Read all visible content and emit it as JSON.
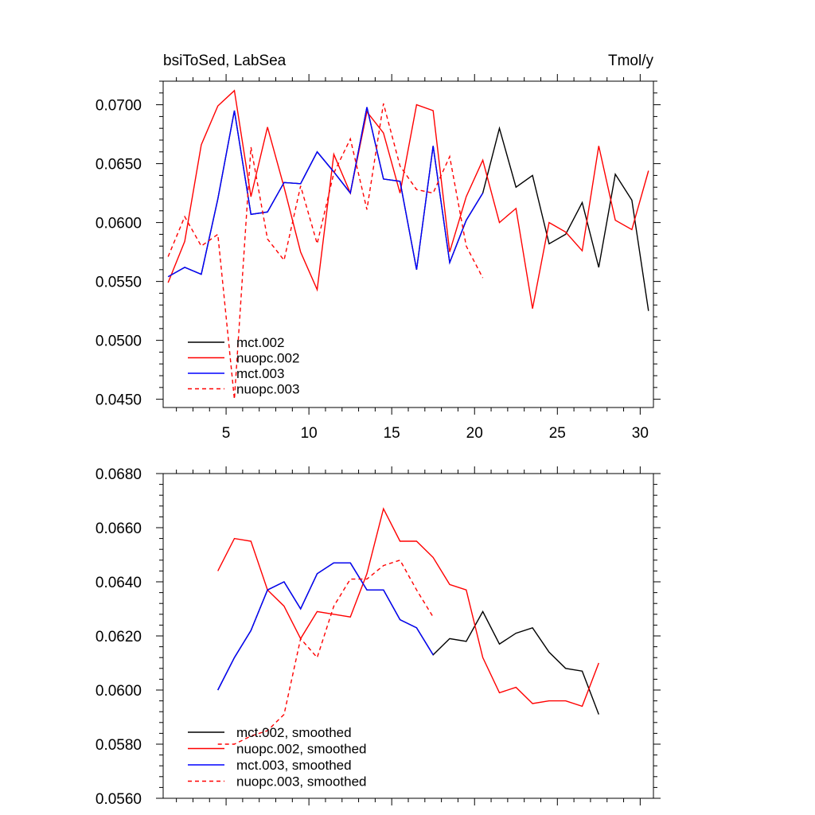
{
  "chart_data": [
    {
      "type": "line",
      "title": "bsiToSed, LabSea",
      "units": "Tmol/y",
      "xlim": [
        1.2,
        30.8
      ],
      "ylim": [
        0.0443,
        0.072
      ],
      "xticks": [
        5,
        10,
        15,
        20,
        25,
        30
      ],
      "xtick_labels": [
        "5",
        "10",
        "15",
        "20",
        "25",
        "30"
      ],
      "yticks": [
        0.045,
        0.05,
        0.055,
        0.06,
        0.065,
        0.07
      ],
      "ytick_labels": [
        "0.0450",
        "0.0500",
        "0.0550",
        "0.0600",
        "0.0650",
        "0.0700"
      ],
      "legend_position": "bottom-left",
      "series": [
        {
          "name": "mct.002",
          "color": "#000000",
          "dash": "solid",
          "x": [
            1.5,
            2.5,
            3.5,
            4.5,
            5.5,
            6.5,
            7.5,
            8.5,
            9.5,
            10.5,
            11.5,
            12.5,
            13.5,
            14.5,
            15.5,
            16.5,
            17.5,
            18.5,
            19.5,
            20.5,
            21.5,
            22.5,
            23.5,
            24.5,
            25.5,
            26.5,
            27.5,
            28.5,
            29.5,
            30.5
          ],
          "y": [
            0.0554,
            0.0562,
            0.0556,
            0.062,
            0.0695,
            0.0607,
            0.0609,
            0.0634,
            0.0633,
            0.066,
            0.0643,
            0.0625,
            0.0698,
            0.0637,
            0.0635,
            0.056,
            0.0665,
            0.0566,
            0.0602,
            0.0625,
            0.068,
            0.063,
            0.064,
            0.0582,
            0.059,
            0.0617,
            0.0562,
            0.0641,
            0.0619,
            0.0525
          ]
        },
        {
          "name": "nuopc.002",
          "color": "#ff0000",
          "dash": "solid",
          "x": [
            1.5,
            2.5,
            3.5,
            4.5,
            5.5,
            6.5,
            7.5,
            8.5,
            9.5,
            10.5,
            11.5,
            12.5,
            13.5,
            14.5,
            15.5,
            16.5,
            17.5,
            18.5,
            19.5,
            20.5,
            21.5,
            22.5,
            23.5,
            24.5,
            25.5,
            26.5,
            27.5,
            28.5,
            29.5,
            30.5
          ],
          "y": [
            0.0549,
            0.0584,
            0.0666,
            0.0699,
            0.0712,
            0.0622,
            0.0681,
            0.063,
            0.0575,
            0.0543,
            0.0658,
            0.0625,
            0.0694,
            0.0676,
            0.0625,
            0.07,
            0.0695,
            0.0575,
            0.0622,
            0.0653,
            0.06,
            0.0612,
            0.0527,
            0.06,
            0.0592,
            0.0576,
            0.0665,
            0.0602,
            0.0594,
            0.0644
          ]
        },
        {
          "name": "mct.003",
          "color": "#0000ff",
          "dash": "solid",
          "x": [
            1.5,
            2.5,
            3.5,
            4.5,
            5.5,
            6.5,
            7.5,
            8.5,
            9.5,
            10.5,
            11.5,
            12.5,
            13.5,
            14.5,
            15.5,
            16.5,
            17.5,
            18.5,
            19.5,
            20.5
          ],
          "y": [
            0.0554,
            0.0562,
            0.0556,
            0.062,
            0.0695,
            0.0607,
            0.0609,
            0.0634,
            0.0633,
            0.066,
            0.0643,
            0.0625,
            0.0698,
            0.0637,
            0.0635,
            0.056,
            0.0665,
            0.0566,
            0.0602,
            0.0625
          ]
        },
        {
          "name": "nuopc.003",
          "color": "#ff0000",
          "dash": "dashed",
          "x": [
            1.5,
            2.5,
            3.5,
            4.5,
            5.5,
            6.5,
            7.5,
            8.5,
            9.5,
            10.5,
            11.5,
            12.5,
            13.5,
            14.5,
            15.5,
            16.5,
            17.5,
            18.5,
            19.5,
            20.5
          ],
          "y": [
            0.0571,
            0.0605,
            0.058,
            0.059,
            0.045,
            0.0664,
            0.0586,
            0.0568,
            0.0631,
            0.0582,
            0.0642,
            0.0671,
            0.0611,
            0.0701,
            0.0648,
            0.0628,
            0.0625,
            0.0656,
            0.058,
            0.0553
          ]
        }
      ]
    },
    {
      "type": "line",
      "title": "",
      "xlim": [
        1.2,
        30.8
      ],
      "ylim": [
        0.056,
        0.068
      ],
      "xticks": [
        5,
        10,
        15,
        20,
        25,
        30
      ],
      "xtick_labels": [
        "",
        "",
        "",
        "",
        "",
        ""
      ],
      "yticks": [
        0.056,
        0.058,
        0.06,
        0.062,
        0.064,
        0.066,
        0.068
      ],
      "ytick_labels": [
        "0.0560",
        "0.0580",
        "0.0600",
        "0.0620",
        "0.0640",
        "0.0660",
        "0.0680"
      ],
      "legend_position": "bottom-left",
      "series": [
        {
          "name": "mct.002, smoothed",
          "color": "#000000",
          "dash": "solid",
          "x": [
            4.5,
            5.5,
            6.5,
            7.5,
            8.5,
            9.5,
            10.5,
            11.5,
            12.5,
            13.5,
            14.5,
            15.5,
            16.5,
            17.5,
            18.5,
            19.5,
            20.5,
            21.5,
            22.5,
            23.5,
            24.5,
            25.5,
            26.5,
            27.5
          ],
          "y": [
            0.06,
            0.0612,
            0.0622,
            0.0637,
            0.064,
            0.063,
            0.0643,
            0.0647,
            0.0647,
            0.0637,
            0.0637,
            0.0626,
            0.0623,
            0.0613,
            0.0619,
            0.0618,
            0.0629,
            0.0617,
            0.0621,
            0.0623,
            0.0614,
            0.0608,
            0.0607,
            0.0591
          ]
        },
        {
          "name": "nuopc.002, smoothed",
          "color": "#ff0000",
          "dash": "solid",
          "x": [
            4.5,
            5.5,
            6.5,
            7.5,
            8.5,
            9.5,
            10.5,
            11.5,
            12.5,
            13.5,
            14.5,
            15.5,
            16.5,
            17.5,
            18.5,
            19.5,
            20.5,
            21.5,
            22.5,
            23.5,
            24.5,
            25.5,
            26.5,
            27.5
          ],
          "y": [
            0.0644,
            0.0656,
            0.0655,
            0.0637,
            0.0631,
            0.0619,
            0.0629,
            0.0628,
            0.0627,
            0.0643,
            0.0667,
            0.0655,
            0.0655,
            0.0649,
            0.0639,
            0.0637,
            0.0612,
            0.0599,
            0.0601,
            0.0595,
            0.0596,
            0.0596,
            0.0594,
            0.061
          ]
        },
        {
          "name": "mct.003, smoothed",
          "color": "#0000ff",
          "dash": "solid",
          "x": [
            4.5,
            5.5,
            6.5,
            7.5,
            8.5,
            9.5,
            10.5,
            11.5,
            12.5,
            13.5,
            14.5,
            15.5,
            16.5,
            17.5
          ],
          "y": [
            0.06,
            0.0612,
            0.0622,
            0.0637,
            0.064,
            0.063,
            0.0643,
            0.0647,
            0.0647,
            0.0637,
            0.0637,
            0.0626,
            0.0623,
            0.0613
          ]
        },
        {
          "name": "nuopc.003, smoothed",
          "color": "#ff0000",
          "dash": "dashed",
          "x": [
            4.5,
            5.5,
            6.5,
            7.5,
            8.5,
            9.5,
            10.5,
            11.5,
            12.5,
            13.5,
            14.5,
            15.5,
            16.5,
            17.5
          ],
          "y": [
            0.058,
            0.058,
            0.0583,
            0.0585,
            0.0591,
            0.0619,
            0.0612,
            0.0631,
            0.0641,
            0.0641,
            0.0646,
            0.0648,
            0.0637,
            0.0627
          ]
        }
      ]
    }
  ]
}
